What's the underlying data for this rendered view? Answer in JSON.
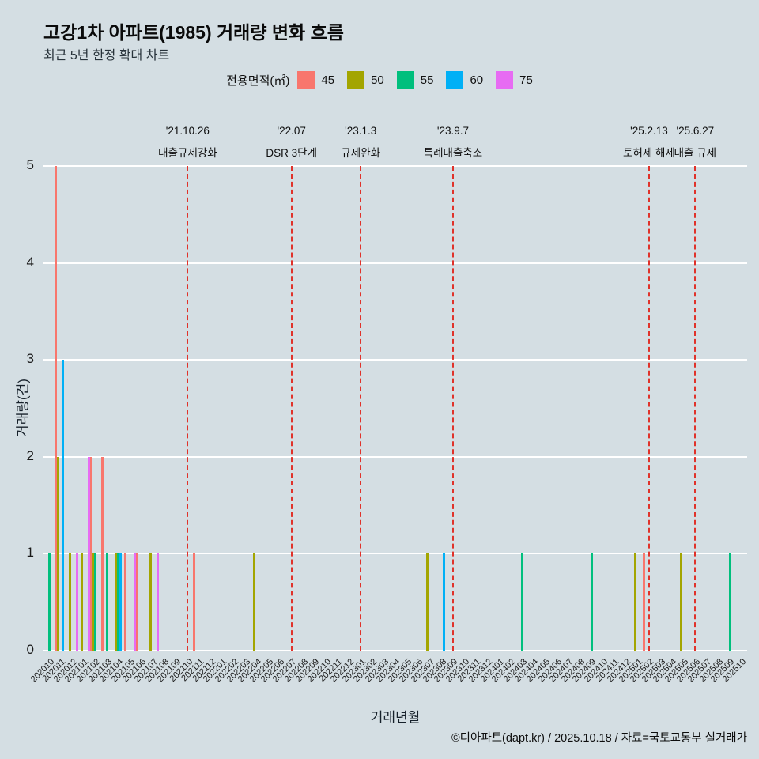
{
  "title": "고강1차 아파트(1985) 거래량 변화 흐름",
  "subtitle": "최근 5년 한정 확대 차트",
  "footer": "©디아파트(dapt.kr) / 2025.10.18 / 자료=국토교통부 실거래가",
  "legend": {
    "title": "전용면적(㎡)",
    "items": [
      {
        "label": "45",
        "color": "#F8766D"
      },
      {
        "label": "50",
        "color": "#A3A500"
      },
      {
        "label": "55",
        "color": "#00BF7D"
      },
      {
        "label": "60",
        "color": "#00B0F6"
      },
      {
        "label": "75",
        "color": "#E76BF3"
      }
    ]
  },
  "chart_data": {
    "type": "bar",
    "title": "고강1차 아파트(1985) 거래량 변화 흐름",
    "xlabel": "거래년월",
    "ylabel": "거래량(건)",
    "ylim": [
      0,
      5
    ],
    "yticks": [
      0,
      1,
      2,
      3,
      4,
      5
    ],
    "grid": "white horizontal gridlines on light blue-gray background",
    "legend_position": "top",
    "categories": [
      "202010",
      "202011",
      "202012",
      "202101",
      "202102",
      "202103",
      "202104",
      "202105",
      "202106",
      "202107",
      "202108",
      "202109",
      "202110",
      "202111",
      "202112",
      "202201",
      "202202",
      "202203",
      "202204",
      "202205",
      "202206",
      "202207",
      "202208",
      "202209",
      "202210",
      "202211",
      "202212",
      "202301",
      "202302",
      "202303",
      "202304",
      "202305",
      "202306",
      "202307",
      "202308",
      "202309",
      "202310",
      "202311",
      "202312",
      "202401",
      "202402",
      "202403",
      "202404",
      "202405",
      "202406",
      "202407",
      "202408",
      "202409",
      "202410",
      "202411",
      "202412",
      "202501",
      "202502",
      "202503",
      "202504",
      "202505",
      "202506",
      "202507",
      "202508",
      "202509",
      "202510"
    ],
    "series": [
      {
        "name": "45",
        "color": "#F8766D",
        "values": [
          0,
          5,
          0,
          0,
          2,
          2,
          0,
          1,
          1,
          0,
          0,
          0,
          0,
          1,
          0,
          0,
          0,
          0,
          0,
          0,
          0,
          0,
          0,
          0,
          0,
          0,
          0,
          0,
          0,
          0,
          0,
          0,
          0,
          0,
          0,
          0,
          0,
          0,
          0,
          0,
          0,
          0,
          0,
          0,
          0,
          0,
          0,
          0,
          0,
          0,
          0,
          0,
          1,
          0,
          0,
          0,
          0,
          0,
          0,
          0,
          0
        ]
      },
      {
        "name": "50",
        "color": "#A3A500",
        "values": [
          0,
          2,
          1,
          1,
          1,
          0,
          1,
          0,
          0,
          1,
          0,
          0,
          0,
          0,
          0,
          0,
          0,
          0,
          1,
          0,
          0,
          0,
          0,
          0,
          0,
          0,
          0,
          0,
          0,
          0,
          0,
          0,
          0,
          1,
          0,
          0,
          0,
          0,
          0,
          0,
          0,
          0,
          0,
          0,
          0,
          0,
          0,
          0,
          0,
          0,
          0,
          1,
          0,
          0,
          0,
          1,
          0,
          0,
          0,
          0,
          0
        ]
      },
      {
        "name": "55",
        "color": "#00BF7D",
        "values": [
          1,
          0,
          0,
          0,
          1,
          1,
          1,
          0,
          0,
          0,
          0,
          0,
          0,
          0,
          0,
          0,
          0,
          0,
          0,
          0,
          0,
          0,
          0,
          0,
          0,
          0,
          0,
          0,
          0,
          0,
          0,
          0,
          0,
          0,
          0,
          0,
          0,
          0,
          0,
          0,
          0,
          1,
          0,
          0,
          0,
          0,
          0,
          1,
          0,
          0,
          0,
          0,
          0,
          0,
          0,
          0,
          0,
          0,
          0,
          1,
          0
        ]
      },
      {
        "name": "60",
        "color": "#00B0F6",
        "values": [
          0,
          3,
          0,
          0,
          0,
          0,
          1,
          0,
          0,
          0,
          0,
          0,
          0,
          0,
          0,
          0,
          0,
          0,
          0,
          0,
          0,
          0,
          0,
          0,
          0,
          0,
          0,
          0,
          0,
          0,
          0,
          0,
          0,
          0,
          1,
          0,
          0,
          0,
          0,
          0,
          0,
          0,
          0,
          0,
          0,
          0,
          0,
          0,
          0,
          0,
          0,
          0,
          0,
          0,
          0,
          0,
          0,
          0,
          0,
          0,
          0
        ]
      },
      {
        "name": "75",
        "color": "#E76BF3",
        "values": [
          0,
          0,
          1,
          2,
          0,
          0,
          0,
          1,
          0,
          1,
          0,
          0,
          0,
          0,
          0,
          0,
          0,
          0,
          0,
          0,
          0,
          0,
          0,
          0,
          0,
          0,
          0,
          0,
          0,
          0,
          0,
          0,
          0,
          0,
          0,
          0,
          0,
          0,
          0,
          0,
          0,
          0,
          0,
          0,
          0,
          0,
          0,
          0,
          0,
          0,
          0,
          0,
          0,
          0,
          0,
          0,
          0,
          0,
          0,
          0,
          0
        ]
      }
    ],
    "events": [
      {
        "month": "202110",
        "date": "'21.10.26",
        "label": "대출규제강화"
      },
      {
        "month": "202207",
        "date": "'22.07",
        "label": "DSR 3단계"
      },
      {
        "month": "202301",
        "date": "'23.1.3",
        "label": "규제완화"
      },
      {
        "month": "202309",
        "date": "'23.9.7",
        "label": "특례대출축소"
      },
      {
        "month": "202502",
        "date": "'25.2.13",
        "label": "토허제 해제"
      },
      {
        "month": "202506",
        "date": "'25.6.27",
        "label": "대출 규제"
      }
    ],
    "event_line_color": "#e0322a"
  }
}
